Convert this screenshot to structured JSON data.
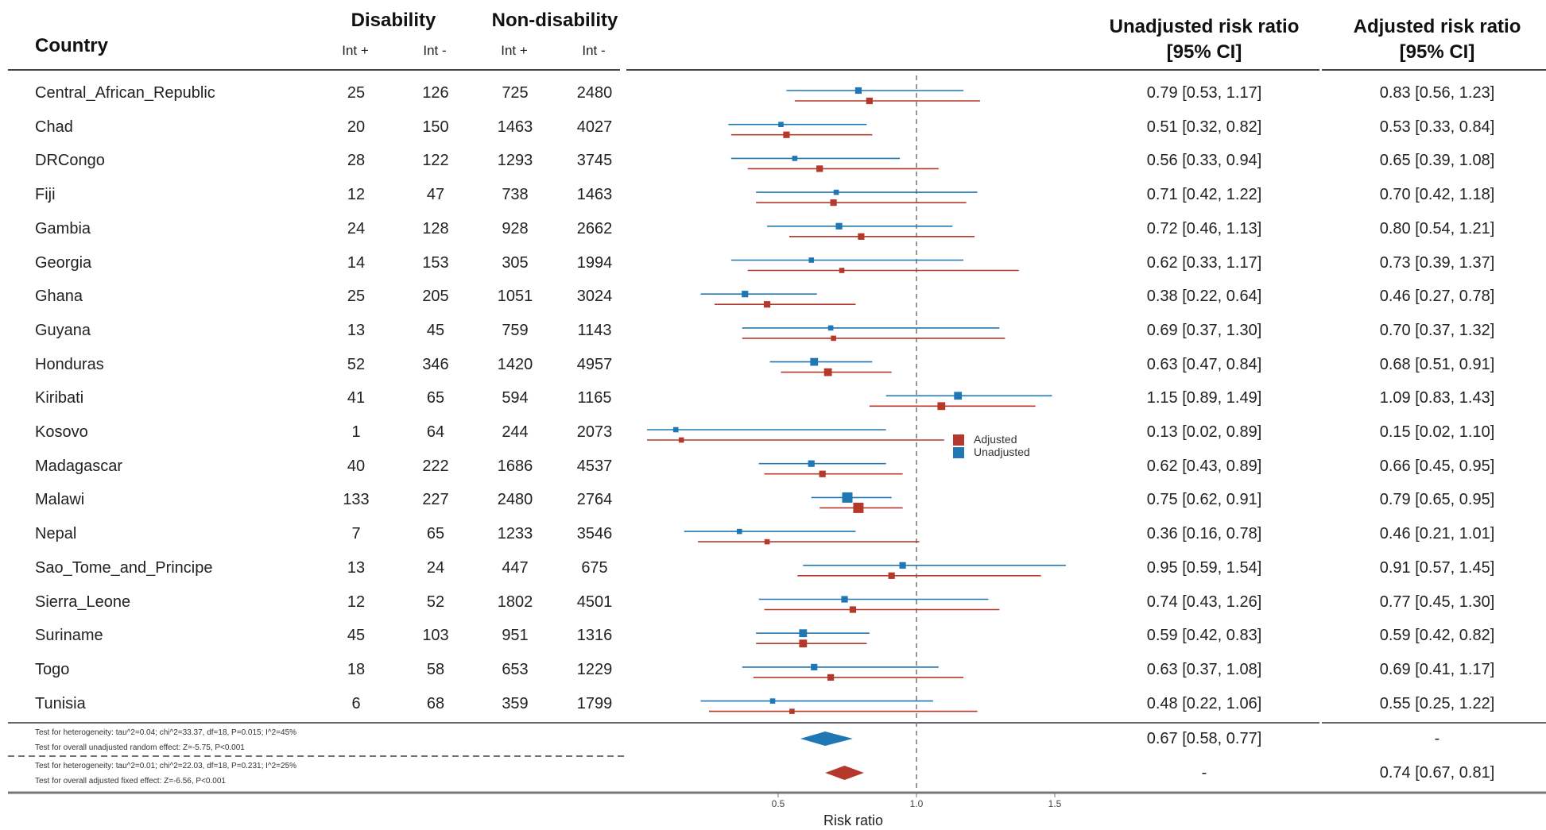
{
  "header": {
    "country": "Country",
    "disability": "Disability",
    "non_disability": "Non-disability",
    "int_plus": "Int +",
    "int_minus": "Int -",
    "unadjusted_line1": "Unadjusted risk ratio",
    "unadjusted_line2": "[95% CI]",
    "adjusted_line1": "Adjusted risk ratio",
    "adjusted_line2": "[95% CI]"
  },
  "rows": [
    {
      "country": "Central_African_Republic",
      "d_plus": "25",
      "d_minus": "126",
      "n_plus": "725",
      "n_minus": "2480",
      "unadj": "0.79 [0.53, 1.17]",
      "adj": "0.83 [0.56, 1.23]"
    },
    {
      "country": "Chad",
      "d_plus": "20",
      "d_minus": "150",
      "n_plus": "1463",
      "n_minus": "4027",
      "unadj": "0.51 [0.32, 0.82]",
      "adj": "0.53 [0.33, 0.84]"
    },
    {
      "country": "DRCongo",
      "d_plus": "28",
      "d_minus": "122",
      "n_plus": "1293",
      "n_minus": "3745",
      "unadj": "0.56 [0.33, 0.94]",
      "adj": "0.65 [0.39, 1.08]"
    },
    {
      "country": "Fiji",
      "d_plus": "12",
      "d_minus": "47",
      "n_plus": "738",
      "n_minus": "1463",
      "unadj": "0.71 [0.42, 1.22]",
      "adj": "0.70 [0.42, 1.18]"
    },
    {
      "country": "Gambia",
      "d_plus": "24",
      "d_minus": "128",
      "n_plus": "928",
      "n_minus": "2662",
      "unadj": "0.72 [0.46, 1.13]",
      "adj": "0.80 [0.54, 1.21]"
    },
    {
      "country": "Georgia",
      "d_plus": "14",
      "d_minus": "153",
      "n_plus": "305",
      "n_minus": "1994",
      "unadj": "0.62 [0.33, 1.17]",
      "adj": "0.73 [0.39, 1.37]"
    },
    {
      "country": "Ghana",
      "d_plus": "25",
      "d_minus": "205",
      "n_plus": "1051",
      "n_minus": "3024",
      "unadj": "0.38 [0.22, 0.64]",
      "adj": "0.46 [0.27, 0.78]"
    },
    {
      "country": "Guyana",
      "d_plus": "13",
      "d_minus": "45",
      "n_plus": "759",
      "n_minus": "1143",
      "unadj": "0.69 [0.37, 1.30]",
      "adj": "0.70 [0.37, 1.32]"
    },
    {
      "country": "Honduras",
      "d_plus": "52",
      "d_minus": "346",
      "n_plus": "1420",
      "n_minus": "4957",
      "unadj": "0.63 [0.47, 0.84]",
      "adj": "0.68 [0.51, 0.91]"
    },
    {
      "country": "Kiribati",
      "d_plus": "41",
      "d_minus": "65",
      "n_plus": "594",
      "n_minus": "1165",
      "unadj": "1.15 [0.89, 1.49]",
      "adj": "1.09 [0.83, 1.43]"
    },
    {
      "country": "Kosovo",
      "d_plus": "1",
      "d_minus": "64",
      "n_plus": "244",
      "n_minus": "2073",
      "unadj": "0.13 [0.02, 0.89]",
      "adj": "0.15 [0.02, 1.10]"
    },
    {
      "country": "Madagascar",
      "d_plus": "40",
      "d_minus": "222",
      "n_plus": "1686",
      "n_minus": "4537",
      "unadj": "0.62 [0.43, 0.89]",
      "adj": "0.66 [0.45, 0.95]"
    },
    {
      "country": "Malawi",
      "d_plus": "133",
      "d_minus": "227",
      "n_plus": "2480",
      "n_minus": "2764",
      "unadj": "0.75 [0.62, 0.91]",
      "adj": "0.79 [0.65, 0.95]"
    },
    {
      "country": "Nepal",
      "d_plus": "7",
      "d_minus": "65",
      "n_plus": "1233",
      "n_minus": "3546",
      "unadj": "0.36 [0.16, 0.78]",
      "adj": "0.46 [0.21, 1.01]"
    },
    {
      "country": "Sao_Tome_and_Principe",
      "d_plus": "13",
      "d_minus": "24",
      "n_plus": "447",
      "n_minus": "675",
      "unadj": "0.95 [0.59, 1.54]",
      "adj": "0.91 [0.57, 1.45]"
    },
    {
      "country": "Sierra_Leone",
      "d_plus": "12",
      "d_minus": "52",
      "n_plus": "1802",
      "n_minus": "4501",
      "unadj": "0.74 [0.43, 1.26]",
      "adj": "0.77 [0.45, 1.30]"
    },
    {
      "country": "Suriname",
      "d_plus": "45",
      "d_minus": "103",
      "n_plus": "951",
      "n_minus": "1316",
      "unadj": "0.59 [0.42, 0.83]",
      "adj": "0.59 [0.42, 0.82]"
    },
    {
      "country": "Togo",
      "d_plus": "18",
      "d_minus": "58",
      "n_plus": "653",
      "n_minus": "1229",
      "unadj": "0.63 [0.37, 1.08]",
      "adj": "0.69 [0.41, 1.17]"
    },
    {
      "country": "Tunisia",
      "d_plus": "6",
      "d_minus": "68",
      "n_plus": "359",
      "n_minus": "1799",
      "unadj": "0.48 [0.22, 1.06]",
      "adj": "0.55 [0.25, 1.22]"
    }
  ],
  "summary": {
    "unadjusted_het": "Test for heterogeneity: tau^2=0.04; chi^2=33.37, df=18, P=0.015; I^2=45%",
    "unadjusted_overall": "Test for overall unadjusted random effect: Z=-5.75, P<0.001",
    "unadjusted_unadj_ci": "0.67 [0.58, 0.77]",
    "unadjusted_adj_ci": "-",
    "adjusted_het": "Test for heterogeneity: tau^2=0.01; chi^2=22.03, df=18, P=0.231; I^2=25%",
    "adjusted_overall": "Test for overall adjusted fixed effect: Z=-6.56, P<0.001",
    "adjusted_unadj_ci": "-",
    "adjusted_adj_ci": "0.74 [0.67, 0.81]"
  },
  "chart_data": {
    "type": "forest",
    "xlabel": "Risk ratio",
    "xlim": [
      0,
      1.6
    ],
    "xticks": [
      0.5,
      1.0,
      1.5
    ],
    "xtick_labels": [
      "0.5",
      "1.0",
      "1.5"
    ],
    "reference_line": 1.0,
    "legend": {
      "placement": "center-right",
      "entries": [
        "Adjusted",
        "Unadjusted"
      ]
    },
    "colors": {
      "unadjusted": "#1f77b4",
      "adjusted": "#b5382a"
    },
    "categories": [
      "Central_African_Republic",
      "Chad",
      "DRCongo",
      "Fiji",
      "Gambia",
      "Georgia",
      "Ghana",
      "Guyana",
      "Honduras",
      "Kiribati",
      "Kosovo",
      "Madagascar",
      "Malawi",
      "Nepal",
      "Sao_Tome_and_Principe",
      "Sierra_Leone",
      "Suriname",
      "Togo",
      "Tunisia"
    ],
    "series": [
      {
        "name": "Unadjusted",
        "est": [
          0.79,
          0.51,
          0.56,
          0.71,
          0.72,
          0.62,
          0.38,
          0.69,
          0.63,
          1.15,
          0.13,
          0.62,
          0.75,
          0.36,
          0.95,
          0.74,
          0.59,
          0.63,
          0.48
        ],
        "low": [
          0.53,
          0.32,
          0.33,
          0.42,
          0.46,
          0.33,
          0.22,
          0.37,
          0.47,
          0.89,
          0.02,
          0.43,
          0.62,
          0.16,
          0.59,
          0.43,
          0.42,
          0.37,
          0.22
        ],
        "high": [
          1.17,
          0.82,
          0.94,
          1.22,
          1.13,
          1.17,
          0.64,
          1.3,
          0.84,
          1.49,
          0.89,
          0.89,
          0.91,
          0.78,
          1.54,
          1.26,
          0.83,
          1.08,
          1.06
        ],
        "weight": [
          2,
          1,
          1,
          1,
          2,
          1,
          2,
          1,
          3,
          3,
          1,
          2,
          5,
          1,
          2,
          2,
          3,
          2,
          1
        ]
      },
      {
        "name": "Adjusted",
        "est": [
          0.83,
          0.53,
          0.65,
          0.7,
          0.8,
          0.73,
          0.46,
          0.7,
          0.68,
          1.09,
          0.15,
          0.66,
          0.79,
          0.46,
          0.91,
          0.77,
          0.59,
          0.69,
          0.55
        ],
        "low": [
          0.56,
          0.33,
          0.39,
          0.42,
          0.54,
          0.39,
          0.27,
          0.37,
          0.51,
          0.83,
          0.02,
          0.45,
          0.65,
          0.21,
          0.57,
          0.45,
          0.42,
          0.41,
          0.25
        ],
        "high": [
          1.23,
          0.84,
          1.08,
          1.18,
          1.21,
          1.37,
          0.78,
          1.32,
          0.91,
          1.43,
          1.1,
          0.95,
          0.95,
          1.01,
          1.45,
          1.3,
          0.82,
          1.17,
          1.22
        ],
        "weight": [
          2,
          2,
          2,
          2,
          2,
          1,
          2,
          1,
          3,
          3,
          1,
          2,
          5,
          1,
          2,
          2,
          3,
          2,
          1
        ]
      }
    ],
    "pooled": [
      {
        "name": "Unadjusted",
        "est": 0.67,
        "low": 0.58,
        "high": 0.77
      },
      {
        "name": "Adjusted",
        "est": 0.74,
        "low": 0.67,
        "high": 0.81
      }
    ]
  }
}
